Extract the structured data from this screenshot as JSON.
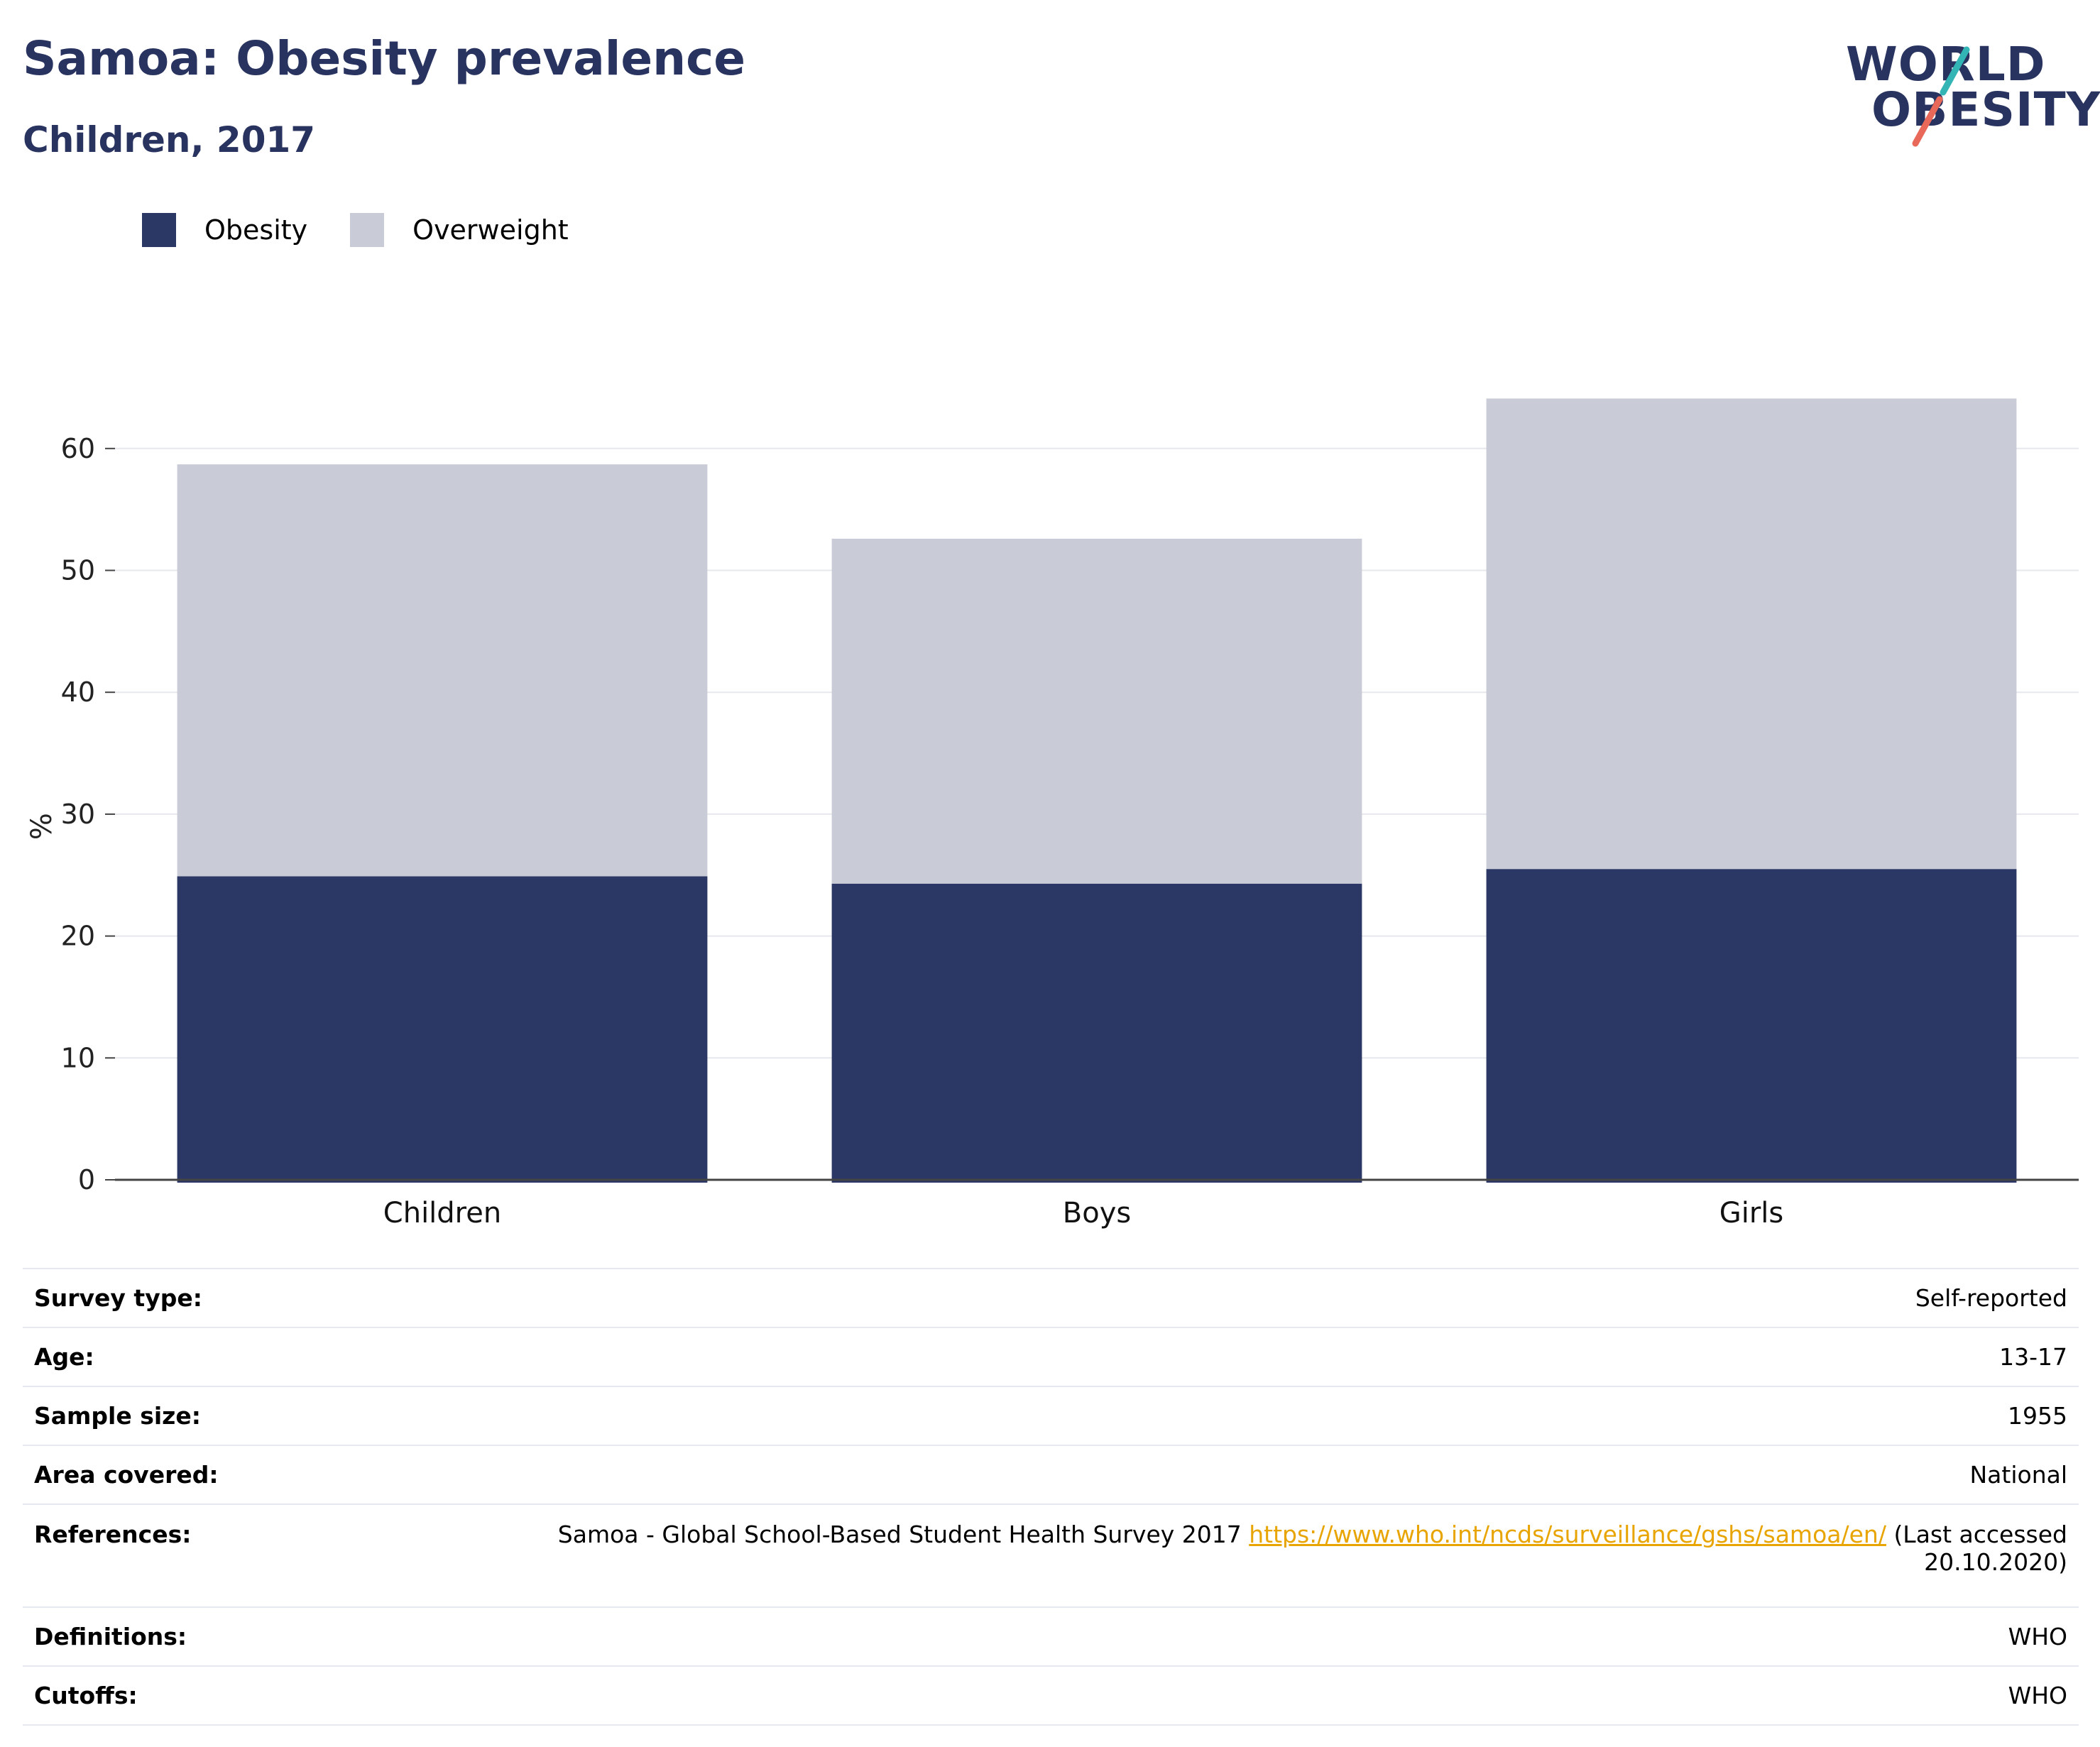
{
  "header": {
    "title": "Samoa: Obesity prevalence",
    "subtitle": "Children, 2017"
  },
  "logo": {
    "line1": "WORLD",
    "line2": "OBESITY",
    "accent_teal": "#33b5b5",
    "accent_coral": "#e8685a"
  },
  "colors": {
    "obesity": "#2b3764",
    "overweight": "#c9cbd6",
    "title": "#28335f",
    "link": "#e8a400"
  },
  "legend": {
    "items": [
      {
        "label": "Obesity",
        "color": "#2b3764"
      },
      {
        "label": "Overweight",
        "color": "#c9cbd6"
      }
    ]
  },
  "chart_data": {
    "type": "bar",
    "stacked": true,
    "categories": [
      "Children",
      "Boys",
      "Girls"
    ],
    "series": [
      {
        "name": "Obesity",
        "values": [
          24.9,
          24.3,
          25.5
        ]
      },
      {
        "name": "Overweight",
        "values": [
          33.8,
          28.3,
          38.6
        ]
      }
    ],
    "title": "Samoa: Obesity prevalence",
    "subtitle": "Children, 2017",
    "xlabel": "",
    "ylabel": "%",
    "ylim": [
      0,
      70
    ],
    "yticks": [
      0,
      10,
      20,
      30,
      40,
      50,
      60
    ],
    "grid": true,
    "legend_position": "top-left"
  },
  "table": {
    "rows": [
      {
        "label": "Survey type:",
        "value": "Self-reported"
      },
      {
        "label": "Age:",
        "value": "13-17"
      },
      {
        "label": "Sample size:",
        "value": "1955"
      },
      {
        "label": "Area covered:",
        "value": "National"
      },
      {
        "label": "References:",
        "value_pre": "Samoa - Global School-Based Student Health Survey 2017",
        "link": "https://www.who.int/ncds/surveillance/gshs/samoa/en/",
        "value_post": "(Last accessed",
        "value_post2": "20.10.2020)"
      },
      {
        "label": "Definitions:",
        "value": "WHO"
      },
      {
        "label": "Cutoffs:",
        "value": "WHO"
      }
    ]
  }
}
